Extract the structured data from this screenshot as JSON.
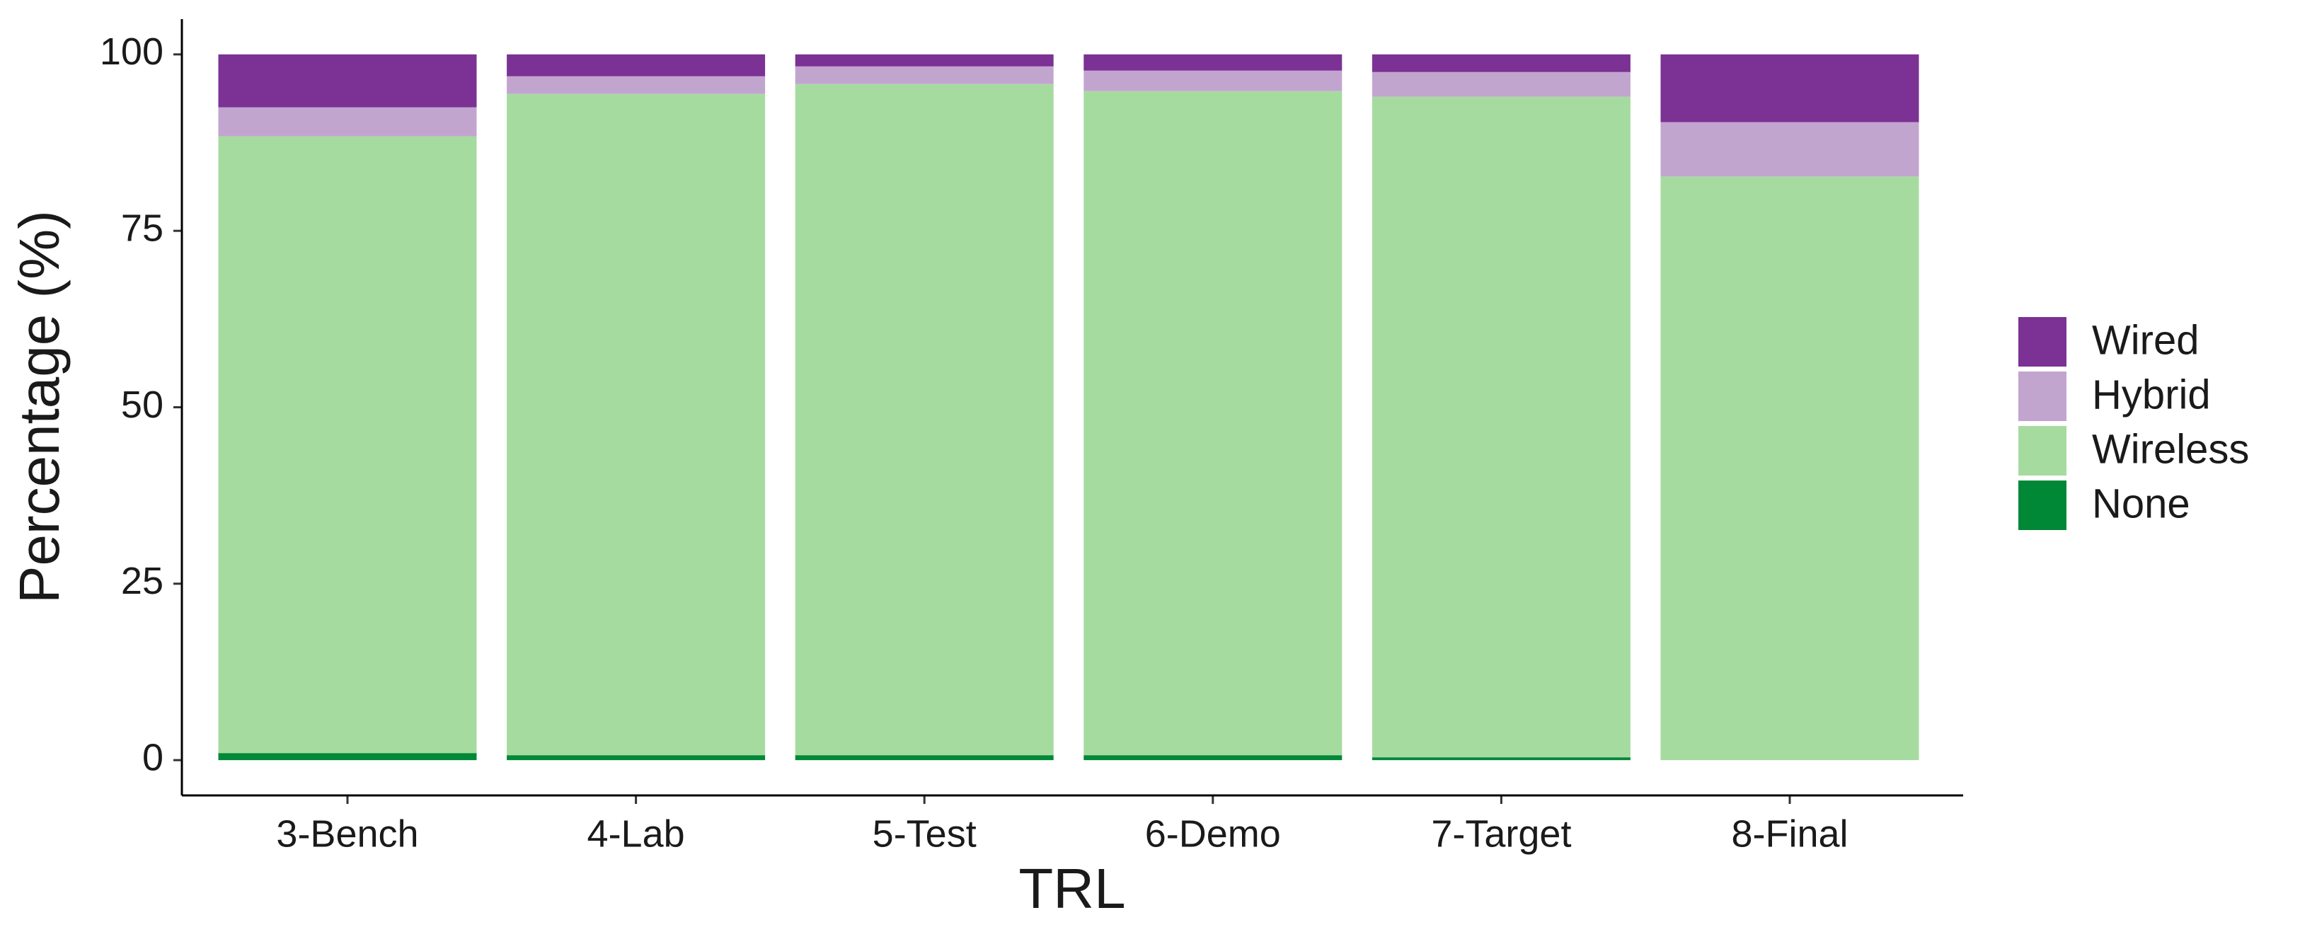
{
  "chart_data": {
    "type": "stacked-bar",
    "x_label": "TRL",
    "y_label": "Percentage (%)",
    "categories": [
      "3-Bench",
      "4-Lab",
      "5-Test",
      "6-Demo",
      "7-Target",
      "8-Final"
    ],
    "series": [
      {
        "name": "None",
        "color": "#008837",
        "values": [
          1.0,
          0.7,
          0.7,
          0.7,
          0.4,
          0
        ]
      },
      {
        "name": "Wireless",
        "color": "#A6DBA0",
        "values": [
          87.4,
          93.7,
          95.1,
          94.1,
          93.6,
          82.7
        ]
      },
      {
        "name": "Hybrid",
        "color": "#C2A5CF",
        "values": [
          4.1,
          2.5,
          2.5,
          2.9,
          3.5,
          7.7
        ]
      },
      {
        "name": "Wired",
        "color": "#7B3294",
        "values": [
          7.5,
          3.1,
          1.7,
          2.3,
          2.5,
          9.6
        ]
      }
    ],
    "ylim": [
      -5,
      105
    ],
    "yticks": [
      0,
      25,
      50,
      75,
      100
    ],
    "grid": false,
    "legend": "right"
  }
}
